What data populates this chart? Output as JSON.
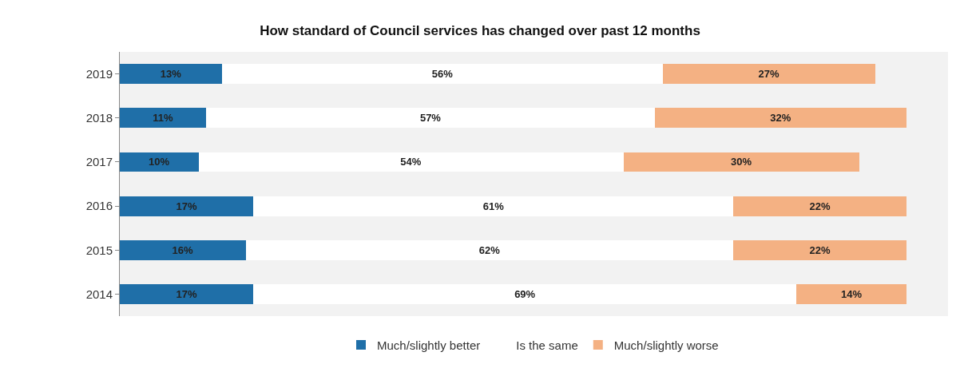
{
  "chart_data": {
    "type": "bar",
    "orientation": "horizontal",
    "stacked": true,
    "title": "How standard of Council services has changed over past 12 months",
    "categories": [
      "2019",
      "2018",
      "2017",
      "2016",
      "2015",
      "2014"
    ],
    "series": [
      {
        "name": "Much/slightly better",
        "color": "#1f6fa8",
        "values": [
          13,
          11,
          10,
          17,
          16,
          17
        ],
        "value_labels": [
          "13%",
          "11%",
          "10%",
          "17%",
          "16%",
          "17%"
        ]
      },
      {
        "name": "Is the same",
        "color": "#ffffff",
        "values": [
          56,
          57,
          54,
          61,
          62,
          69
        ],
        "value_labels": [
          "56%",
          "57%",
          "54%",
          "61%",
          "62%",
          "69%"
        ]
      },
      {
        "name": "Much/slightly worse",
        "color": "#f4b183",
        "values": [
          27,
          32,
          30,
          22,
          22,
          14
        ],
        "value_labels": [
          "27%",
          "32%",
          "30%",
          "22%",
          "22%",
          "14%"
        ]
      }
    ],
    "legend": "bottom",
    "tick_labels": "y",
    "grid": false
  }
}
